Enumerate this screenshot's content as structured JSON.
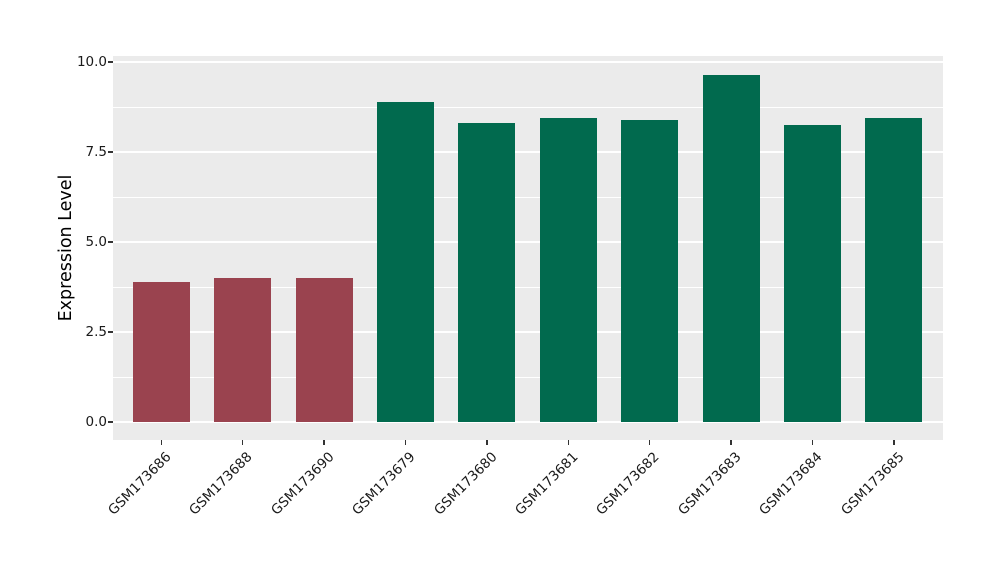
{
  "figure": {
    "background_color": "#ffffff",
    "panel_background_color": "#ebebeb",
    "gridline_color": "#ffffff",
    "tick_color": "#333333",
    "text_color": "#1a1a1a"
  },
  "chart_data": {
    "type": "bar",
    "title": "",
    "xlabel": "",
    "ylabel": "Expression Level",
    "categories": [
      "GSM173686",
      "GSM173688",
      "GSM173690",
      "GSM173679",
      "GSM173680",
      "GSM173681",
      "GSM173682",
      "GSM173683",
      "GSM173684",
      "GSM173685"
    ],
    "values": [
      3.9,
      4.0,
      4.0,
      8.9,
      8.3,
      8.45,
      8.4,
      9.65,
      8.25,
      8.45
    ],
    "bar_colors": [
      "#9a434f",
      "#9a434f",
      "#9a434f",
      "#016a4e",
      "#016a4e",
      "#016a4e",
      "#016a4e",
      "#016a4e",
      "#016a4e",
      "#016a4e"
    ],
    "color_groups": [
      {
        "color": "#9a434f",
        "categories": [
          "GSM173686",
          "GSM173688",
          "GSM173690"
        ]
      },
      {
        "color": "#016a4e",
        "categories": [
          "GSM173679",
          "GSM173680",
          "GSM173681",
          "GSM173682",
          "GSM173683",
          "GSM173684",
          "GSM173685"
        ]
      }
    ],
    "ylim": [
      0,
      10.17
    ],
    "yticks_major": [
      0.0,
      2.5,
      5.0,
      7.5,
      10.0
    ],
    "ytick_labels": [
      "0.0",
      "2.5",
      "5.0",
      "7.5",
      "10.0"
    ],
    "yticks_minor": [
      1.25,
      3.75,
      6.25,
      8.75
    ],
    "grid": "major-and-minor",
    "legend": "none",
    "x_label_rotation_deg": 45
  }
}
